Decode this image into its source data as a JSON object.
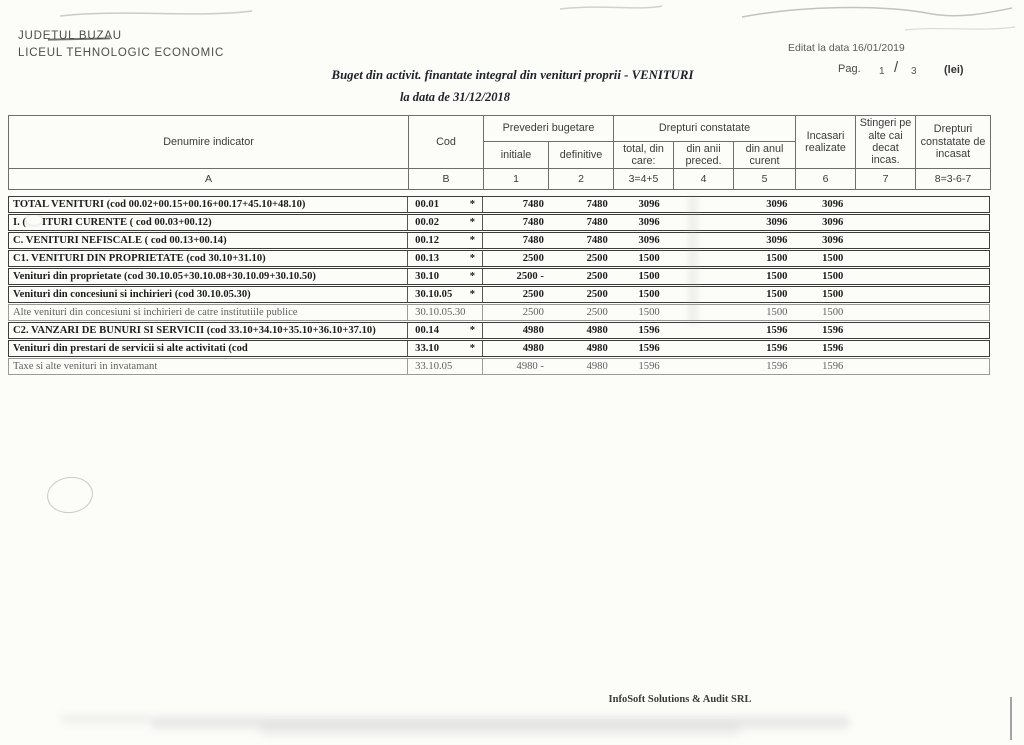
{
  "document": {
    "org": {
      "line1": "JUDETUL BUZAU",
      "line2": "LICEUL TEHNOLOGIC ECONOMIC"
    },
    "meta": {
      "edited": "Editat la data 16/01/2019",
      "page_label": "Pag.",
      "page_current": "1",
      "page_sep": "/",
      "page_total": "3",
      "unit": "(lei)"
    },
    "title": {
      "line1": "Buget din activit. finantate integral din venituri proprii - VENITURI",
      "line2": "la data de 31/12/2018"
    },
    "footer": "InfoSoft Solutions & Audit SRL"
  },
  "table": {
    "header": {
      "denumire": "Denumire indicator",
      "cod": "Cod",
      "prevederi": "Prevederi bugetare",
      "drepturi": "Drepturi constatate",
      "incasari": "Incasari realizate",
      "stingeri": "Stingeri pe alte cai decat incas.",
      "drepturi_incasat": "Drepturi constatate de incasat",
      "initiale": "initiale",
      "definitive": "definitive",
      "total": "total, din care:",
      "din_anii": "din anii preced.",
      "din_anul": "din anul curent"
    },
    "col_letters": [
      "A",
      "B",
      "1",
      "2",
      "3=4+5",
      "4",
      "5",
      "6",
      "7",
      "8=3-6-7"
    ],
    "rows": [
      {
        "label": "TOTAL VENITURI (cod 00.02+00.15+00.16+00.17+45.10+48.10)",
        "cod": "00.01",
        "star": "*",
        "initiale": "7480",
        "definitive": "7480",
        "total": "3096",
        "din_anii": "",
        "din_anul": "3096",
        "incasari": "3096",
        "stingeri": "",
        "de_incasat": "",
        "light": false
      },
      {
        "label_pre": "I. (",
        "label": "ITURI CURENTE ( cod 00.03+00.12)",
        "cod": "00.02",
        "star": "*",
        "initiale": "7480",
        "definitive": "7480",
        "total": "3096",
        "din_anii": "",
        "din_anul": "3096",
        "incasari": "3096",
        "stingeri": "",
        "de_incasat": "",
        "light": false
      },
      {
        "label": "C. VENITURI NEFISCALE ( cod 00.13+00.14)",
        "cod": "00.12",
        "star": "*",
        "initiale": "7480",
        "definitive": "7480",
        "total": "3096",
        "din_anii": "",
        "din_anul": "3096",
        "incasari": "3096",
        "stingeri": "",
        "de_incasat": "",
        "light": false
      },
      {
        "label": "C1. VENITURI DIN PROPRIETATE (cod 30.10+31.10)",
        "cod": "00.13",
        "star": "*",
        "initiale": "2500",
        "definitive": "2500",
        "total": "1500",
        "din_anii": "",
        "din_anul": "1500",
        "incasari": "1500",
        "stingeri": "",
        "de_incasat": "",
        "light": false
      },
      {
        "label": "Venituri din proprietate (cod 30.10.05+30.10.08+30.10.09+30.10.50)",
        "cod": "30.10",
        "star": "*",
        "initiale": "2500 -",
        "definitive": "2500",
        "total": "1500",
        "din_anii": "",
        "din_anul": "1500",
        "incasari": "1500",
        "stingeri": "",
        "de_incasat": "",
        "light": false
      },
      {
        "label": "Venituri din concesiuni si inchirieri (cod 30.10.05.30)",
        "cod": "30.10.05",
        "star": "*",
        "initiale": "2500",
        "definitive": "2500",
        "total": "1500",
        "din_anii": "",
        "din_anul": "1500",
        "incasari": "1500",
        "stingeri": "",
        "de_incasat": "",
        "light": false
      },
      {
        "label": "Alte venituri din concesiuni si inchirieri de catre institutiile publice",
        "cod": "30.10.05.30",
        "star": "",
        "initiale": "2500",
        "definitive": "2500",
        "total": "1500",
        "din_anii": "",
        "din_anul": "1500",
        "incasari": "1500",
        "stingeri": "",
        "de_incasat": "",
        "light": true
      },
      {
        "label": "C2. VANZARI DE BUNURI SI SERVICII (cod 33.10+34.10+35.10+36.10+37.10)",
        "cod": "00.14",
        "star": "*",
        "initiale": "4980",
        "definitive": "4980",
        "total": "1596",
        "din_anii": "",
        "din_anul": "1596",
        "incasari": "1596",
        "stingeri": "",
        "de_incasat": "",
        "light": false
      },
      {
        "label": "Venituri din prestari de servicii si alte activitati (cod",
        "cod": "33.10",
        "star": "*",
        "initiale": "4980",
        "definitive": "4980",
        "total": "1596",
        "din_anii": "",
        "din_anul": "1596",
        "incasari": "1596",
        "stingeri": "",
        "de_incasat": "",
        "light": false
      },
      {
        "label": "Taxe si alte venituri in invatamant",
        "cod": "33.10.05",
        "star": "",
        "initiale": "4980 -",
        "definitive": "4980",
        "total": "1596",
        "din_anii": "",
        "din_anul": "1596",
        "incasari": "1596",
        "stingeri": "",
        "de_incasat": "",
        "light": true
      }
    ]
  },
  "colors": {
    "paper": "#fcfcf9",
    "table_line": "#6e6e6e",
    "text": "#1d1d1d",
    "light_text": "#5f5f5f"
  }
}
